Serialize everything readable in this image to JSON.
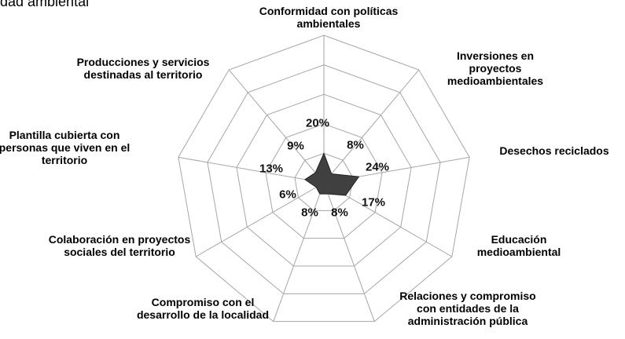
{
  "chart_data": {
    "type": "radar",
    "title": "dad ambiental",
    "categories": [
      "Conformidad con políticas ambientales",
      "Inversiones en proyectos medioambientales",
      "Desechos reciclados",
      "Educación medioambiental",
      "Relaciones y compromiso con entidades de la administración pública",
      "Compromiso con el desarrollo de la localidad",
      "Colaboración en proyectos sociales  del territorio",
      "Plantilla cubierta con personas que viven en el territorio",
      "Producciones y servicios destinadas al territorio"
    ],
    "values": [
      20,
      8,
      24,
      17,
      8,
      8,
      6,
      13,
      9
    ],
    "value_labels": [
      "20%",
      "8%",
      "24%",
      "17%",
      "8%",
      "8%",
      "6%",
      "13%",
      "9%"
    ],
    "color": "#404040",
    "ylim": [
      0,
      100
    ],
    "yticks": [
      0,
      20,
      40,
      60,
      80,
      100
    ],
    "grid": true
  }
}
